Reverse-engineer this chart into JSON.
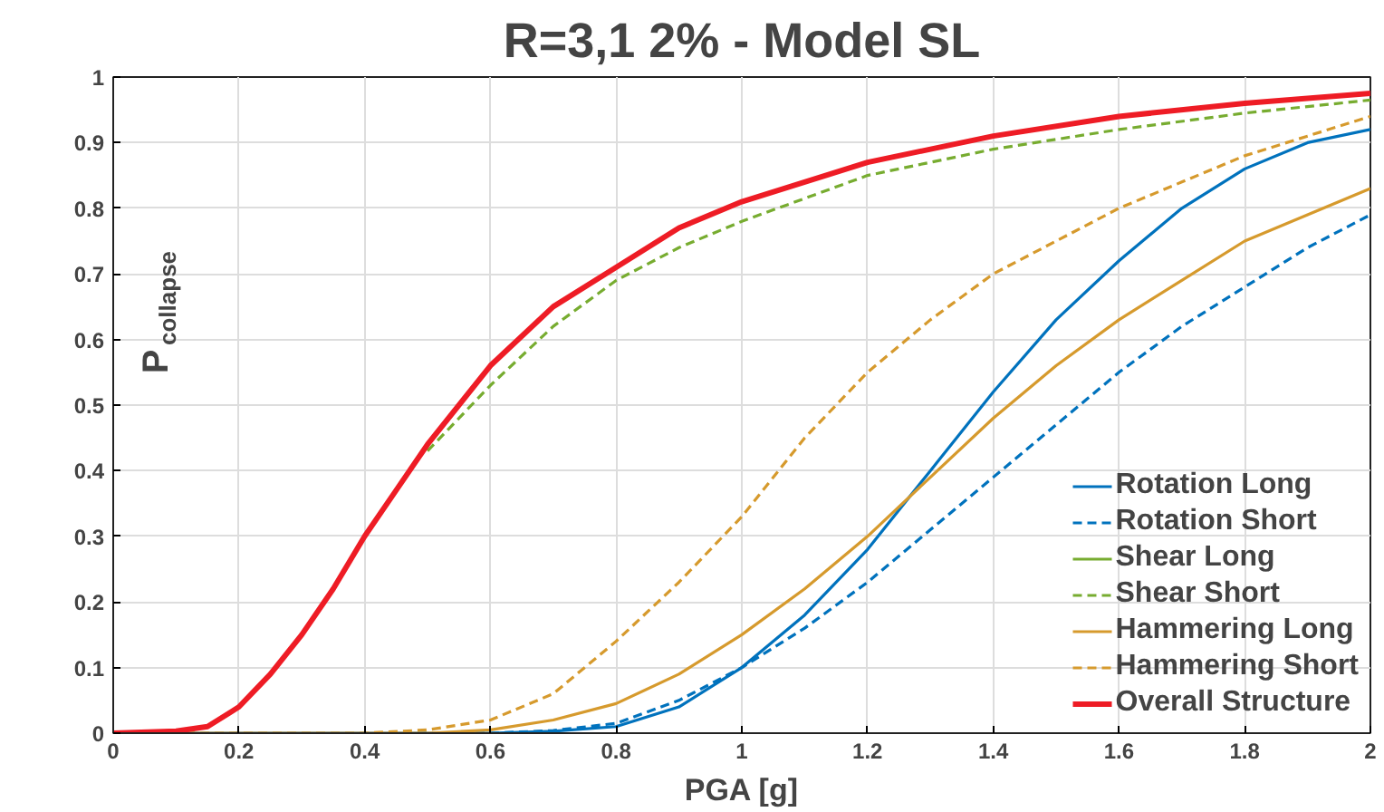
{
  "chart_data": {
    "type": "line",
    "title": "R=3,1 2% - Model SL",
    "xlabel": "PGA [g]",
    "ylabel": "P$_{collapse}$",
    "xlim": [
      0,
      2
    ],
    "ylim": [
      0,
      1
    ],
    "xticks": [
      0,
      0.2,
      0.4,
      0.6,
      0.8,
      1,
      1.2,
      1.4,
      1.6,
      1.8,
      2
    ],
    "yticks": [
      0,
      0.1,
      0.2,
      0.3,
      0.4,
      0.5,
      0.6,
      0.7,
      0.8,
      0.9,
      1
    ],
    "grid": true,
    "legend": "bottom right",
    "series": [
      {
        "name": "Rotation Long",
        "color": "#0072bd",
        "line_style": "solid",
        "x": [
          0,
          0.6,
          0.7,
          0.8,
          0.9,
          1.0,
          1.1,
          1.2,
          1.3,
          1.4,
          1.5,
          1.6,
          1.7,
          1.8,
          1.9,
          2.0
        ],
        "values": [
          0,
          0,
          0.003,
          0.01,
          0.04,
          0.1,
          0.18,
          0.28,
          0.4,
          0.52,
          0.63,
          0.72,
          0.8,
          0.86,
          0.9,
          0.92
        ]
      },
      {
        "name": "Rotation Short",
        "color": "#0072bd",
        "line_style": "dashed",
        "x": [
          0,
          0.6,
          0.7,
          0.8,
          0.9,
          1.0,
          1.1,
          1.2,
          1.3,
          1.4,
          1.5,
          1.6,
          1.7,
          1.8,
          1.9,
          2.0
        ],
        "values": [
          0,
          0,
          0.004,
          0.015,
          0.05,
          0.1,
          0.16,
          0.23,
          0.31,
          0.39,
          0.47,
          0.55,
          0.62,
          0.68,
          0.74,
          0.79
        ]
      },
      {
        "name": "Shear Long",
        "color": "#77ac30",
        "line_style": "solid"
      },
      {
        "name": "Shear Short",
        "color": "#77ac30",
        "line_style": "dashed",
        "x": [
          0.5,
          0.6,
          0.7,
          0.8,
          0.9,
          1.0,
          1.2,
          1.4,
          1.6,
          1.8,
          2.0
        ],
        "values": [
          0.43,
          0.53,
          0.62,
          0.69,
          0.74,
          0.78,
          0.85,
          0.89,
          0.92,
          0.945,
          0.965
        ]
      },
      {
        "name": "Hammering Long",
        "color": "#d69a2d",
        "line_style": "solid",
        "x": [
          0,
          0.5,
          0.6,
          0.7,
          0.8,
          0.9,
          1.0,
          1.1,
          1.2,
          1.3,
          1.4,
          1.5,
          1.6,
          1.7,
          1.8,
          1.9,
          2.0
        ],
        "values": [
          0,
          0,
          0.005,
          0.02,
          0.045,
          0.09,
          0.15,
          0.22,
          0.3,
          0.39,
          0.48,
          0.56,
          0.63,
          0.69,
          0.75,
          0.79,
          0.83
        ]
      },
      {
        "name": "Hammering Short",
        "color": "#d69a2d",
        "line_style": "dashed",
        "x": [
          0,
          0.4,
          0.5,
          0.6,
          0.7,
          0.8,
          0.9,
          1.0,
          1.1,
          1.2,
          1.3,
          1.4,
          1.5,
          1.6,
          1.7,
          1.8,
          1.9,
          2.0
        ],
        "values": [
          0,
          0,
          0.005,
          0.02,
          0.06,
          0.14,
          0.23,
          0.33,
          0.45,
          0.55,
          0.63,
          0.7,
          0.75,
          0.8,
          0.84,
          0.88,
          0.91,
          0.94
        ]
      },
      {
        "name": "Overall Structure",
        "color": "#ee1c25",
        "line_style": "solid",
        "x": [
          0,
          0.1,
          0.15,
          0.2,
          0.25,
          0.3,
          0.35,
          0.4,
          0.45,
          0.5,
          0.6,
          0.7,
          0.8,
          0.9,
          1.0,
          1.2,
          1.4,
          1.6,
          1.8,
          2.0
        ],
        "values": [
          0,
          0.003,
          0.01,
          0.04,
          0.09,
          0.15,
          0.22,
          0.3,
          0.37,
          0.44,
          0.56,
          0.65,
          0.71,
          0.77,
          0.81,
          0.87,
          0.91,
          0.94,
          0.96,
          0.975
        ]
      }
    ]
  }
}
